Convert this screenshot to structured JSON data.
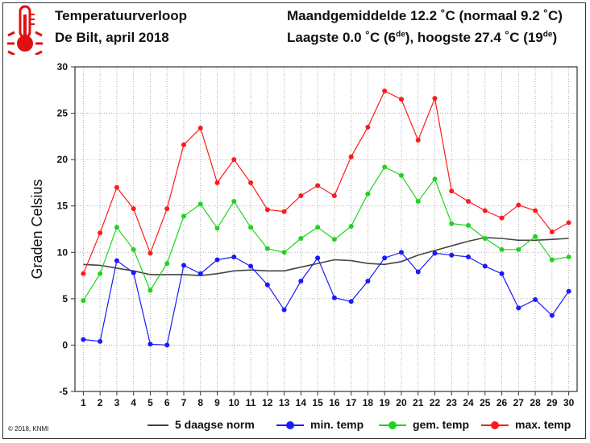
{
  "header": {
    "title": "Temperatuurverloop",
    "subtitle": "De Bilt, april 2018",
    "monthly_avg": "Maandgemiddelde 12.2 ˚C (normaal 9.2 ˚C)",
    "extremes_pre": "Laagste 0.0 ˚C (6",
    "extremes_sup1": "de",
    "extremes_mid": "), hoogste 27.4 ˚C (19",
    "extremes_sup2": "de",
    "extremes_post": ")",
    "thermometer_icon": "thermometer-icon",
    "thermometer_color": "#e01010"
  },
  "footer": {
    "copyright": "© 2018, KNMI"
  },
  "legend": [
    {
      "label": "5 daagse norm",
      "color": "#444444",
      "kind": "line"
    },
    {
      "label": "min. temp",
      "color": "#1a1aff",
      "kind": "dot"
    },
    {
      "label": "gem. temp",
      "color": "#1ed41e",
      "kind": "dot"
    },
    {
      "label": "max. temp",
      "color": "#ff1a1a",
      "kind": "dot"
    }
  ],
  "chart_data": {
    "type": "line",
    "ylabel": "Graden Celsius",
    "xlabel": "",
    "ylim": [
      -5,
      30
    ],
    "yticks": [
      -5,
      0,
      5,
      10,
      15,
      20,
      25,
      30
    ],
    "x": [
      1,
      2,
      3,
      4,
      5,
      6,
      7,
      8,
      9,
      10,
      11,
      12,
      13,
      14,
      15,
      16,
      17,
      18,
      19,
      20,
      21,
      22,
      23,
      24,
      25,
      26,
      27,
      28,
      29,
      30
    ],
    "grid": true,
    "legend_position": "bottom",
    "series": [
      {
        "name": "5 daagse norm",
        "color": "#444444",
        "markers": false,
        "values": [
          8.7,
          8.6,
          8.3,
          8.0,
          7.6,
          7.6,
          7.6,
          7.5,
          7.7,
          8.0,
          8.1,
          8.0,
          8.0,
          8.4,
          8.8,
          9.2,
          9.1,
          8.8,
          8.7,
          9.0,
          9.7,
          10.2,
          10.7,
          11.2,
          11.6,
          11.5,
          11.3,
          11.3,
          11.4,
          11.5
        ]
      },
      {
        "name": "min. temp",
        "color": "#1a1aff",
        "markers": true,
        "values": [
          0.6,
          0.4,
          9.1,
          7.8,
          0.1,
          0.0,
          8.6,
          7.7,
          9.2,
          9.5,
          8.5,
          6.5,
          3.8,
          6.9,
          9.4,
          5.1,
          4.7,
          6.9,
          9.4,
          10.0,
          7.9,
          9.9,
          9.7,
          9.5,
          8.5,
          7.7,
          4.0,
          4.9,
          3.2,
          5.8
        ]
      },
      {
        "name": "gem. temp",
        "color": "#1ed41e",
        "markers": true,
        "values": [
          4.8,
          7.7,
          12.7,
          10.3,
          5.9,
          8.8,
          13.9,
          15.2,
          12.6,
          15.5,
          12.7,
          10.4,
          10.0,
          11.5,
          12.7,
          11.4,
          12.8,
          16.3,
          19.2,
          18.3,
          15.5,
          17.9,
          13.1,
          12.9,
          11.5,
          10.3,
          10.3,
          11.7,
          9.2,
          9.5
        ]
      },
      {
        "name": "max. temp",
        "color": "#ff1a1a",
        "markers": true,
        "values": [
          7.7,
          12.1,
          17.0,
          14.7,
          9.9,
          14.7,
          21.6,
          23.4,
          17.5,
          20.0,
          17.5,
          14.6,
          14.4,
          16.1,
          17.2,
          16.1,
          20.3,
          23.5,
          27.4,
          26.5,
          22.1,
          26.6,
          16.6,
          15.5,
          14.5,
          13.7,
          15.1,
          14.5,
          12.2,
          13.2
        ]
      }
    ]
  }
}
